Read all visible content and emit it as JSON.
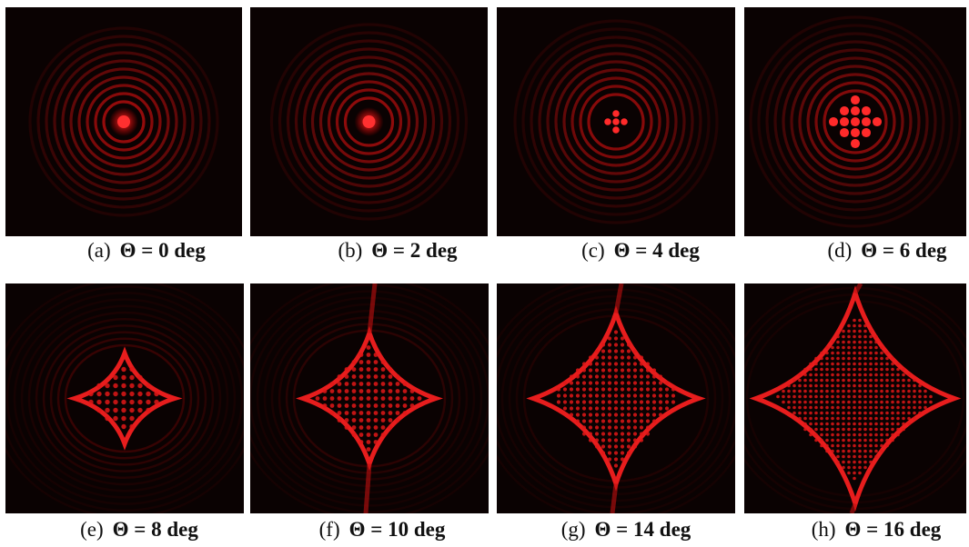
{
  "figure": {
    "panels": [
      {
        "label": "(a)",
        "caption": "Θ = 0 deg"
      },
      {
        "label": "(b)",
        "caption": "Θ = 2 deg"
      },
      {
        "label": "(c)",
        "caption": "Θ = 4 deg"
      },
      {
        "label": "(d)",
        "caption": "Θ = 6 deg"
      },
      {
        "label": "(e)",
        "caption": "Θ = 8 deg"
      },
      {
        "label": "(f)",
        "caption": "Θ = 10 deg"
      },
      {
        "label": "(g)",
        "caption": "Θ = 14 deg"
      },
      {
        "label": "(h)",
        "caption": "Θ = 16 deg"
      }
    ]
  }
}
